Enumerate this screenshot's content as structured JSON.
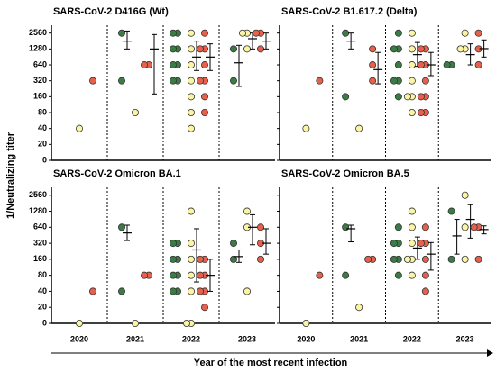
{
  "y_label": "1/Neutralizing titer",
  "x_label": "Year of the most recent infection",
  "categories": [
    "2020",
    "2021",
    "2022",
    "2023"
  ],
  "chart_data": [
    {
      "type": "scatter",
      "title": "SARS-CoV-2  D416G (Wt)",
      "yscale": "log2",
      "ylim": [
        0,
        3600
      ],
      "yticks": [
        0,
        20,
        40,
        80,
        160,
        320,
        640,
        1280,
        2560
      ],
      "series": [
        {
          "color": "#3a7d44",
          "x": [
            "2021",
            "2021",
            "2022",
            "2022",
            "2022",
            "2022",
            "2022",
            "2022",
            "2022",
            "2022",
            "2023",
            "2023"
          ],
          "values": [
            2560,
            320,
            2560,
            2560,
            1280,
            1280,
            640,
            640,
            320,
            320,
            1280,
            320
          ],
          "errorbars": {
            "x": [
              "2021",
              "2023"
            ],
            "mean": [
              1800,
              700
            ],
            "low": [
              1280,
              250
            ],
            "high": [
              2800,
              1500
            ]
          }
        },
        {
          "color": "#fbf4a4",
          "x": [
            "2020",
            "2021",
            "2022",
            "2022",
            "2022",
            "2022",
            "2022",
            "2022",
            "2022",
            "2023",
            "2023",
            "2023"
          ],
          "values": [
            40,
            80,
            2560,
            1280,
            640,
            320,
            160,
            80,
            40,
            2560,
            2560,
            1280
          ],
          "errorbars": {
            "x": [
              "2022",
              "2023"
            ],
            "mean": [
              900,
              2000
            ],
            "low": [
              500,
              1280
            ],
            "high": [
              1800,
              2560
            ]
          }
        },
        {
          "color": "#e8604c",
          "x": [
            "2020",
            "2021",
            "2021",
            "2022",
            "2022",
            "2022",
            "2022",
            "2022",
            "2022",
            "2022",
            "2022",
            "2023",
            "2023",
            "2023"
          ],
          "values": [
            320,
            640,
            640,
            2560,
            1280,
            1280,
            640,
            320,
            320,
            160,
            80,
            2560,
            2560,
            1280
          ],
          "errorbars": {
            "x": [
              "2021",
              "2022",
              "2023"
            ],
            "mean": [
              1280,
              900,
              1800
            ],
            "low": [
              180,
              500,
              1280
            ],
            "high": [
              2400,
              1600,
              2560
            ]
          }
        }
      ]
    },
    {
      "type": "scatter",
      "title": "SARS-CoV-2  B1.617.2 (Delta)",
      "yscale": "log2",
      "ylim": [
        0,
        3600
      ],
      "yticks": [
        0,
        20,
        40,
        80,
        160,
        320,
        640,
        1280,
        2560
      ],
      "series": [
        {
          "color": "#3a7d44",
          "x": [
            "2021",
            "2021",
            "2022",
            "2022",
            "2022",
            "2022",
            "2022",
            "2022",
            "2022",
            "2023",
            "2023"
          ],
          "values": [
            2560,
            160,
            2560,
            1280,
            1280,
            640,
            320,
            320,
            160,
            640,
            640
          ],
          "errorbars": {
            "x": [
              "2021"
            ],
            "mean": [
              1800
            ],
            "low": [
              1280
            ],
            "high": [
              2560
            ]
          }
        },
        {
          "color": "#fbf4a4",
          "x": [
            "2020",
            "2021",
            "2022",
            "2022",
            "2022",
            "2022",
            "2022",
            "2022",
            "2022",
            "2023",
            "2023",
            "2023"
          ],
          "values": [
            40,
            40,
            2560,
            1280,
            640,
            320,
            160,
            160,
            80,
            2560,
            1280,
            1280
          ],
          "errorbars": {
            "x": [
              "2022",
              "2023"
            ],
            "mean": [
              1000,
              1000
            ],
            "low": [
              600,
              640
            ],
            "high": [
              1700,
              1600
            ]
          }
        },
        {
          "color": "#e8604c",
          "x": [
            "2020",
            "2021",
            "2021",
            "2021",
            "2022",
            "2022",
            "2022",
            "2022",
            "2022",
            "2022",
            "2022",
            "2022",
            "2022",
            "2023",
            "2023",
            "2023"
          ],
          "values": [
            320,
            1280,
            640,
            320,
            1280,
            1280,
            640,
            640,
            320,
            160,
            160,
            80,
            80,
            2560,
            1280,
            640
          ],
          "errorbars": {
            "x": [
              "2021",
              "2022",
              "2023"
            ],
            "mean": [
              520,
              640,
              1300
            ],
            "low": [
              280,
              400,
              900
            ],
            "high": [
              1100,
              1100,
              1900
            ]
          }
        }
      ]
    },
    {
      "type": "scatter",
      "title": "SARS-CoV-2  Omicron BA.1",
      "yscale": "log2",
      "ylim": [
        0,
        3600
      ],
      "yticks": [
        0,
        20,
        40,
        80,
        160,
        320,
        640,
        1280,
        2560
      ],
      "series": [
        {
          "color": "#3a7d44",
          "x": [
            "2021",
            "2021",
            "2022",
            "2022",
            "2022",
            "2022",
            "2022",
            "2022",
            "2022",
            "2022",
            "2023",
            "2023"
          ],
          "values": [
            640,
            40,
            320,
            320,
            160,
            160,
            80,
            80,
            40,
            40,
            320,
            160
          ],
          "errorbars": {
            "x": [
              "2021",
              "2023"
            ],
            "mean": [
              500,
              180
            ],
            "low": [
              360,
              140
            ],
            "high": [
              700,
              240
            ]
          }
        },
        {
          "color": "#fbf4a4",
          "x": [
            "2020",
            "2021",
            "2022",
            "2022",
            "2022",
            "2022",
            "2022",
            "2022",
            "2022",
            "2023",
            "2023",
            "2023"
          ],
          "values": [
            0,
            0,
            1280,
            320,
            160,
            80,
            40,
            0,
            0,
            1280,
            640,
            40
          ],
          "errorbars": {
            "x": [
              "2022",
              "2023"
            ],
            "mean": [
              240,
              640
            ],
            "low": [
              60,
              300
            ],
            "high": [
              600,
              1100
            ]
          }
        },
        {
          "color": "#e8604c",
          "x": [
            "2020",
            "2021",
            "2021",
            "2022",
            "2022",
            "2022",
            "2022",
            "2022",
            "2022",
            "2022",
            "2023",
            "2023",
            "2023"
          ],
          "values": [
            40,
            80,
            80,
            160,
            160,
            80,
            80,
            40,
            40,
            20,
            640,
            320,
            160
          ],
          "errorbars": {
            "x": [
              "2022",
              "2023"
            ],
            "mean": [
              80,
              320
            ],
            "low": [
              40,
              200
            ],
            "high": [
              160,
              600
            ]
          }
        }
      ]
    },
    {
      "type": "scatter",
      "title": "SARS-CoV-2  Omicron BA.5",
      "yscale": "log2",
      "ylim": [
        0,
        3600
      ],
      "yticks": [
        0,
        20,
        40,
        80,
        160,
        320,
        640,
        1280,
        2560
      ],
      "series": [
        {
          "color": "#3a7d44",
          "x": [
            "2021",
            "2021",
            "2022",
            "2022",
            "2022",
            "2022",
            "2022",
            "2022",
            "2023",
            "2023"
          ],
          "values": [
            640,
            80,
            640,
            320,
            320,
            160,
            160,
            80,
            1280,
            160
          ],
          "errorbars": {
            "x": [
              "2021",
              "2023"
            ],
            "mean": [
              600,
              440
            ],
            "low": [
              340,
              200
            ],
            "high": [
              700,
              900
            ]
          }
        },
        {
          "color": "#fbf4a4",
          "x": [
            "2020",
            "2021",
            "2022",
            "2022",
            "2022",
            "2022",
            "2022",
            "2022",
            "2023",
            "2023",
            "2023"
          ],
          "values": [
            0,
            20,
            1280,
            640,
            320,
            160,
            160,
            80,
            2560,
            640,
            160
          ],
          "errorbars": {
            "x": [
              "2022",
              "2023"
            ],
            "mean": [
              260,
              900
            ],
            "low": [
              160,
              400
            ],
            "high": [
              420,
              1700
            ]
          }
        },
        {
          "color": "#e8604c",
          "x": [
            "2020",
            "2021",
            "2021",
            "2022",
            "2022",
            "2022",
            "2022",
            "2022",
            "2022",
            "2023",
            "2023",
            "2023"
          ],
          "values": [
            80,
            160,
            160,
            640,
            320,
            320,
            160,
            80,
            40,
            640,
            640,
            160
          ],
          "errorbars": {
            "x": [
              "2022",
              "2023"
            ],
            "mean": [
              200,
              580
            ],
            "low": [
              100,
              480
            ],
            "high": [
              330,
              680
            ]
          }
        }
      ]
    }
  ]
}
